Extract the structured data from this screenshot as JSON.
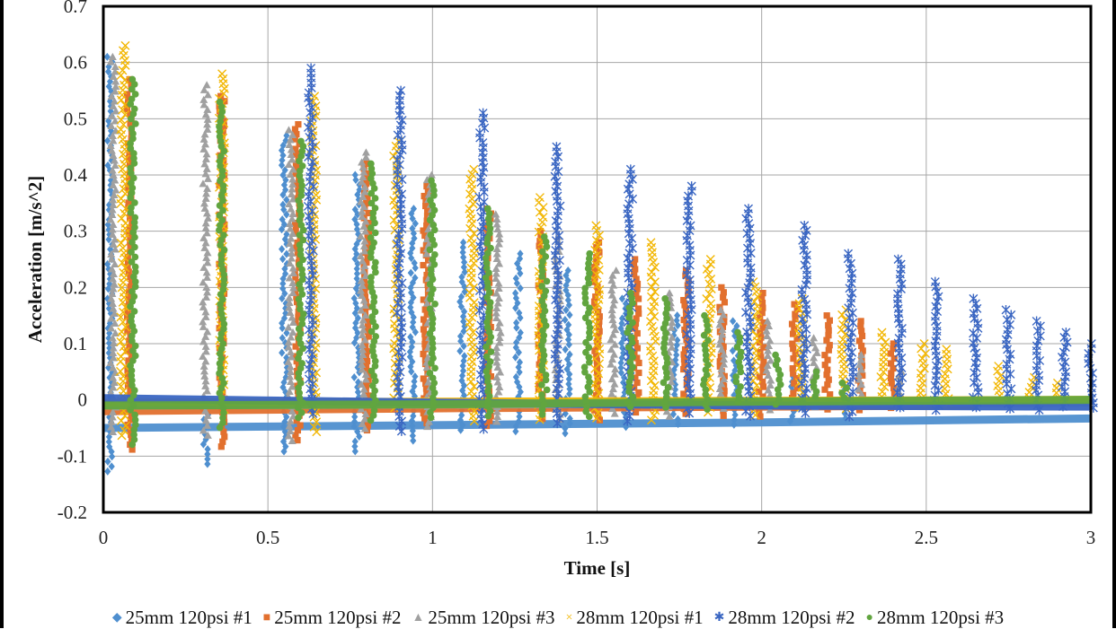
{
  "chart_data": {
    "type": "scatter",
    "title": "",
    "xlabel": "Time [s]",
    "ylabel": "Acceleration [m/s^2]",
    "xlim": [
      0,
      3
    ],
    "ylim": [
      -0.2,
      0.7
    ],
    "xticks": [
      0,
      0.5,
      1,
      1.5,
      2,
      2.5,
      3
    ],
    "xtick_labels": [
      "0",
      "0.5",
      "1",
      "1.5",
      "2",
      "2.5",
      "3"
    ],
    "yticks": [
      -0.2,
      -0.1,
      0,
      0.1,
      0.2,
      0.3,
      0.4,
      0.5,
      0.6,
      0.7
    ],
    "ytick_labels": [
      "-0.2",
      "-0.1",
      "0",
      "0.1",
      "0.2",
      "0.3",
      "0.4",
      "0.5",
      "0.6",
      "0.7"
    ],
    "grid": true,
    "legend_position": "bottom",
    "series": [
      {
        "name": "25mm 120psi #1",
        "marker": "diamond",
        "color": "#4f8fcf",
        "baseline": [
          [
            0,
            -0.05
          ],
          [
            1,
            -0.045
          ],
          [
            2,
            -0.04
          ],
          [
            3,
            -0.033
          ]
        ],
        "spikes": [
          [
            0.02,
            0.61,
            -0.13
          ],
          [
            0.31,
            0.0,
            -0.12
          ],
          [
            0.55,
            0.47,
            -0.1
          ],
          [
            0.77,
            0.4,
            -0.1
          ],
          [
            0.94,
            0.34,
            -0.08
          ],
          [
            1.09,
            0.28,
            -0.06
          ],
          [
            1.26,
            0.26,
            -0.06
          ],
          [
            1.41,
            0.23,
            -0.06
          ],
          [
            1.58,
            0.18,
            -0.05
          ],
          [
            1.74,
            0.15,
            -0.05
          ],
          [
            1.92,
            0.14,
            -0.05
          ],
          [
            2.09,
            0.05,
            -0.04
          ],
          [
            2.25,
            0.02,
            -0.04
          ]
        ]
      },
      {
        "name": "25mm 120psi #2",
        "marker": "square",
        "color": "#e2702e",
        "baseline": [
          [
            0,
            -0.02
          ],
          [
            1,
            -0.015
          ],
          [
            2,
            -0.012
          ],
          [
            2.65,
            -0.01
          ]
        ],
        "spikes": [
          [
            0.08,
            0.57,
            -0.09
          ],
          [
            0.36,
            0.54,
            -0.09
          ],
          [
            0.59,
            0.49,
            -0.08
          ],
          [
            0.8,
            0.42,
            -0.06
          ],
          [
            0.98,
            0.38,
            -0.05
          ],
          [
            1.17,
            0.34,
            -0.05
          ],
          [
            1.33,
            0.3,
            -0.04
          ],
          [
            1.5,
            0.28,
            -0.04
          ],
          [
            1.62,
            0.25,
            -0.03
          ],
          [
            1.77,
            0.23,
            -0.03
          ],
          [
            1.88,
            0.2,
            -0.03
          ],
          [
            2.0,
            0.19,
            -0.03
          ],
          [
            2.1,
            0.17,
            -0.02
          ],
          [
            2.2,
            0.15,
            -0.02
          ],
          [
            2.3,
            0.14,
            -0.02
          ],
          [
            2.4,
            0.1,
            -0.02
          ]
        ]
      },
      {
        "name": "25mm 120psi #3",
        "marker": "triangle",
        "color": "#a0a0a0",
        "baseline": [
          [
            0,
            -0.01
          ],
          [
            3,
            -0.005
          ]
        ],
        "spikes": [
          [
            0.03,
            0.61,
            -0.06
          ],
          [
            0.31,
            0.56,
            -0.07
          ],
          [
            0.57,
            0.48,
            -0.08
          ],
          [
            0.79,
            0.44,
            -0.06
          ],
          [
            0.99,
            0.4,
            -0.05
          ],
          [
            1.2,
            0.33,
            -0.04
          ],
          [
            1.38,
            0.29,
            -0.04
          ],
          [
            1.55,
            0.23,
            -0.03
          ],
          [
            1.72,
            0.19,
            -0.03
          ],
          [
            1.88,
            0.16,
            -0.02
          ],
          [
            2.02,
            0.14,
            -0.02
          ],
          [
            2.16,
            0.11,
            -0.02
          ],
          [
            2.3,
            0.08,
            -0.01
          ],
          [
            2.42,
            0.05,
            -0.01
          ]
        ]
      },
      {
        "name": "28mm 120psi #1",
        "marker": "x",
        "color": "#f2b705",
        "baseline": [
          [
            0,
            -0.005
          ],
          [
            3,
            0.0
          ]
        ],
        "spikes": [
          [
            0.06,
            0.63,
            -0.07
          ],
          [
            0.36,
            0.58,
            -0.02
          ],
          [
            0.64,
            0.54,
            -0.06
          ],
          [
            0.89,
            0.46,
            -0.02
          ],
          [
            1.12,
            0.41,
            -0.04
          ],
          [
            1.33,
            0.36,
            -0.04
          ],
          [
            1.5,
            0.31,
            -0.04
          ],
          [
            1.67,
            0.28,
            -0.04
          ],
          [
            1.84,
            0.25,
            -0.03
          ],
          [
            1.98,
            0.21,
            -0.03
          ],
          [
            2.12,
            0.18,
            -0.02
          ],
          [
            2.25,
            0.16,
            -0.02
          ],
          [
            2.37,
            0.12,
            -0.01
          ],
          [
            2.49,
            0.1,
            -0.01
          ],
          [
            2.56,
            0.09,
            -0.01
          ],
          [
            2.72,
            0.06,
            -0.01
          ],
          [
            2.82,
            0.04,
            0.0
          ],
          [
            2.9,
            0.03,
            0.0
          ]
        ]
      },
      {
        "name": "28mm 120psi #2",
        "marker": "star",
        "color": "#3a66c2",
        "baseline": [
          [
            0,
            0.003
          ],
          [
            1,
            -0.005
          ],
          [
            2,
            -0.01
          ],
          [
            3,
            -0.012
          ]
        ],
        "spikes": [
          [
            0.63,
            0.59,
            -0.03
          ],
          [
            0.9,
            0.55,
            -0.06
          ],
          [
            1.15,
            0.51,
            -0.06
          ],
          [
            1.38,
            0.45,
            -0.05
          ],
          [
            1.6,
            0.41,
            -0.04
          ],
          [
            1.78,
            0.38,
            -0.03
          ],
          [
            1.96,
            0.34,
            -0.03
          ],
          [
            2.13,
            0.31,
            -0.03
          ],
          [
            2.27,
            0.26,
            -0.03
          ],
          [
            2.42,
            0.25,
            -0.02
          ],
          [
            2.53,
            0.21,
            -0.02
          ],
          [
            2.65,
            0.18,
            -0.02
          ],
          [
            2.75,
            0.16,
            -0.02
          ],
          [
            2.84,
            0.14,
            -0.02
          ],
          [
            2.92,
            0.12,
            -0.02
          ],
          [
            3.0,
            0.1,
            -0.02
          ]
        ]
      },
      {
        "name": "28mm 120psi #3",
        "marker": "circle",
        "color": "#61a53f",
        "baseline": [
          [
            0,
            -0.01
          ],
          [
            1,
            -0.008
          ],
          [
            2,
            -0.003
          ],
          [
            3,
            0.0
          ]
        ],
        "spikes": [
          [
            0.09,
            0.57,
            -0.08
          ],
          [
            0.36,
            0.53,
            -0.05
          ],
          [
            0.6,
            0.46,
            -0.04
          ],
          [
            0.82,
            0.42,
            -0.04
          ],
          [
            1.0,
            0.39,
            -0.04
          ],
          [
            1.17,
            0.34,
            -0.03
          ],
          [
            1.34,
            0.29,
            -0.03
          ],
          [
            1.47,
            0.26,
            -0.03
          ],
          [
            1.6,
            0.19,
            -0.02
          ],
          [
            1.71,
            0.18,
            -0.02
          ],
          [
            1.83,
            0.15,
            -0.02
          ],
          [
            1.93,
            0.12,
            -0.01
          ],
          [
            2.05,
            0.08,
            -0.01
          ],
          [
            2.16,
            0.05,
            0.0
          ],
          [
            2.25,
            0.03,
            0.0
          ]
        ]
      }
    ]
  },
  "legend": {
    "items": [
      {
        "label": "25mm 120psi #1",
        "glyph": "◆",
        "color": "#4f8fcf"
      },
      {
        "label": "25mm 120psi #2",
        "glyph": "■",
        "color": "#e2702e"
      },
      {
        "label": "25mm 120psi #3",
        "glyph": "▲",
        "color": "#a0a0a0"
      },
      {
        "label": "28mm 120psi #1",
        "glyph": "×",
        "color": "#f2b705"
      },
      {
        "label": "28mm 120psi #2",
        "glyph": "✱",
        "color": "#3a66c2"
      },
      {
        "label": "28mm 120psi #3",
        "glyph": "●",
        "color": "#61a53f"
      }
    ]
  }
}
